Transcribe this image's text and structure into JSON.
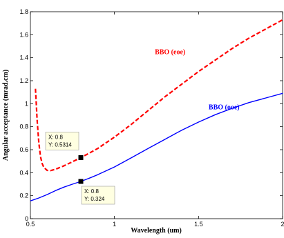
{
  "chart_data": {
    "type": "line",
    "xlabel": "Wavelength (um)",
    "ylabel": "Angular acceptance (mrad.cm)",
    "xlim": [
      0.5,
      2
    ],
    "ylim": [
      0,
      1.8
    ],
    "xticks": [
      0.5,
      1,
      1.5,
      2
    ],
    "xtick_labels": [
      "0.5",
      "1",
      "1.5",
      "2"
    ],
    "yticks": [
      0,
      0.2,
      0.4,
      0.6,
      0.8,
      1,
      1.2,
      1.4,
      1.6,
      1.8
    ],
    "ytick_labels": [
      "0",
      "0.2",
      "0.4",
      "0.6",
      "0.8",
      "1",
      "1.2",
      "1.4",
      "1.6",
      "1.8"
    ],
    "grid": false,
    "series": [
      {
        "name": "BBO (eoe)",
        "color": "#ff0000",
        "style": "dashed",
        "x": [
          0.53,
          0.535,
          0.54,
          0.55,
          0.56,
          0.57,
          0.58,
          0.6,
          0.62,
          0.65,
          0.7,
          0.75,
          0.8,
          0.85,
          0.9,
          1.0,
          1.1,
          1.2,
          1.3,
          1.4,
          1.5,
          1.6,
          1.7,
          1.8,
          1.9,
          2.0
        ],
        "y": [
          1.13,
          1.0,
          0.86,
          0.66,
          0.54,
          0.48,
          0.445,
          0.42,
          0.418,
          0.43,
          0.46,
          0.495,
          0.5314,
          0.57,
          0.61,
          0.71,
          0.82,
          0.94,
          1.06,
          1.17,
          1.28,
          1.38,
          1.48,
          1.57,
          1.65,
          1.73
        ]
      },
      {
        "name": "BBO (ooe)",
        "color": "#0000ff",
        "style": "solid",
        "x": [
          0.5,
          0.55,
          0.6,
          0.65,
          0.7,
          0.75,
          0.8,
          0.85,
          0.9,
          1.0,
          1.1,
          1.2,
          1.3,
          1.4,
          1.5,
          1.6,
          1.7,
          1.8,
          1.9,
          2.0
        ],
        "y": [
          0.155,
          0.18,
          0.21,
          0.245,
          0.275,
          0.3,
          0.324,
          0.352,
          0.382,
          0.45,
          0.53,
          0.61,
          0.69,
          0.77,
          0.84,
          0.905,
          0.96,
          1.01,
          1.05,
          1.09
        ]
      }
    ],
    "datatips": [
      {
        "x_text": "X: 0.8",
        "y_text": "Y: 0.5314",
        "x": 0.8,
        "y": 0.5314
      },
      {
        "x_text": "X: 0.8",
        "y_text": "Y: 0.324",
        "x": 0.8,
        "y": 0.324
      }
    ]
  }
}
